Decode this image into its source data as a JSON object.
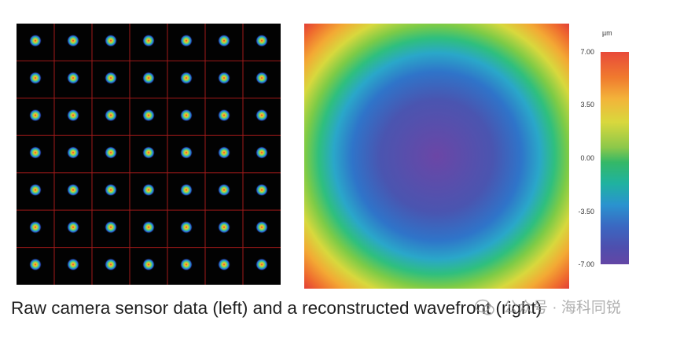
{
  "colorbar": {
    "unit": "µm",
    "ticks": [
      "7.00",
      "3.50",
      "0.00",
      "-3.50",
      "-7.00"
    ]
  },
  "caption": "Raw camera sensor data (left) and a reconstructed wavefront (right)",
  "watermark": "公众号 · 海科同锐",
  "colors": {
    "grid_line": "#a11a1a",
    "background_dark": "#020202"
  }
}
